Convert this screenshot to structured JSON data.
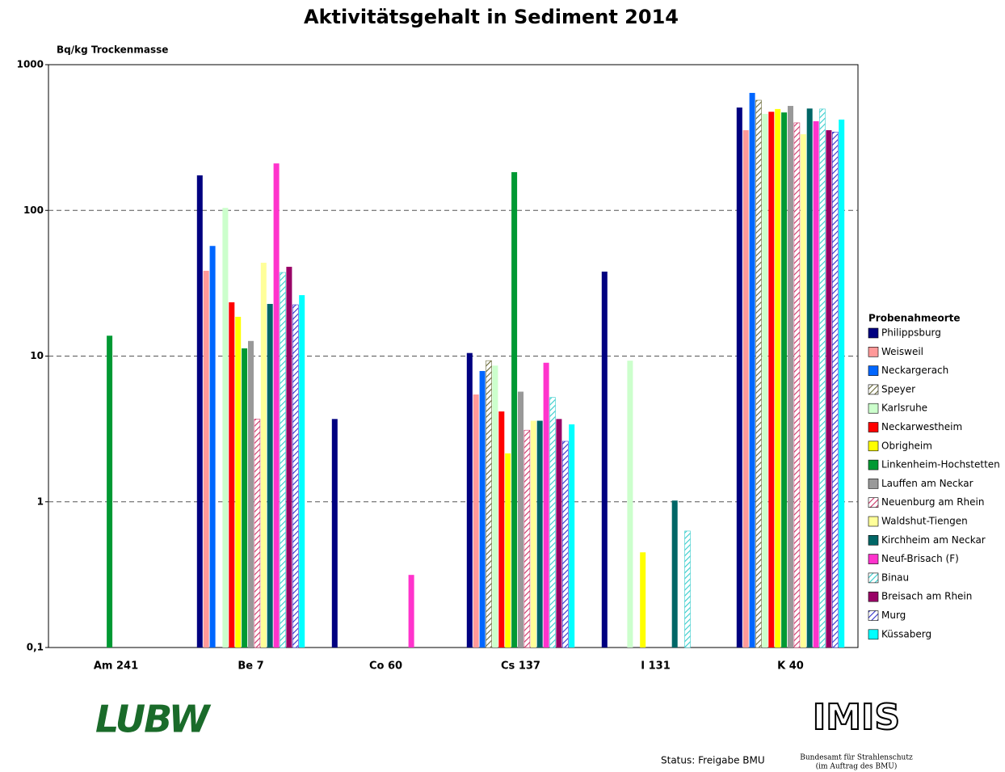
{
  "chart_data": {
    "type": "bar",
    "title": "Aktivitätsgehalt in Sediment 2014",
    "y_label": "Bq/kg Trockenmasse",
    "legend_title": "Probenahmeorte",
    "log_scale": true,
    "grid": true,
    "legend": "right",
    "categories": [
      "Am 241",
      "Be 7",
      "Co 60",
      "Cs 137",
      "I 131",
      "K 40"
    ],
    "ylim": [
      0.1,
      1000
    ],
    "yticks": [
      {
        "value": 0.1,
        "label": "0,1"
      },
      1,
      10,
      100,
      1000
    ],
    "series": [
      {
        "name": "Philippsburg",
        "color": "#000080",
        "hatch": false,
        "values": [
          null,
          174,
          3.7,
          10.5,
          38,
          508
        ]
      },
      {
        "name": "Weisweil",
        "color": "#ff9999",
        "hatch": false,
        "values": [
          null,
          38.5,
          null,
          5.45,
          null,
          355
        ]
      },
      {
        "name": "Neckargerach",
        "color": "#0066ff",
        "hatch": false,
        "values": [
          null,
          57,
          null,
          7.9,
          null,
          640
        ]
      },
      {
        "name": "Speyer",
        "color": "#666633",
        "hatch": true,
        "values": [
          null,
          null,
          null,
          9.3,
          null,
          570
        ]
      },
      {
        "name": "Karlsruhe",
        "color": "#ccffcc",
        "hatch": false,
        "values": [
          null,
          104,
          null,
          8.6,
          9.3,
          459
        ]
      },
      {
        "name": "Neckarwestheim",
        "color": "#ff0000",
        "hatch": false,
        "values": [
          null,
          23.4,
          null,
          4.17,
          null,
          475
        ]
      },
      {
        "name": "Obrigheim",
        "color": "#ffff00",
        "hatch": false,
        "values": [
          null,
          18.6,
          null,
          2.15,
          0.45,
          496
        ]
      },
      {
        "name": "Linkenheim-Hochstetten",
        "color": "#009933",
        "hatch": false,
        "values": [
          13.8,
          11.3,
          null,
          183,
          null,
          470
        ]
      },
      {
        "name": "Lauffen am Neckar",
        "color": "#999999",
        "hatch": false,
        "values": [
          null,
          12.7,
          null,
          5.7,
          null,
          521
        ]
      },
      {
        "name": "Neuenburg am Rhein",
        "color": "#cc3366",
        "hatch": true,
        "values": [
          null,
          3.7,
          null,
          3.1,
          null,
          399
        ]
      },
      {
        "name": "Waldshut-Tiengen",
        "color": "#ffff99",
        "hatch": false,
        "values": [
          null,
          43.7,
          null,
          3.6,
          null,
          333
        ]
      },
      {
        "name": "Kirchheim am Neckar",
        "color": "#006666",
        "hatch": false,
        "values": [
          null,
          22.8,
          null,
          3.6,
          1.02,
          500
        ]
      },
      {
        "name": "Neuf-Brisach (F)",
        "color": "#ff33cc",
        "hatch": false,
        "values": [
          null,
          210,
          0.315,
          9.0,
          null,
          409
        ]
      },
      {
        "name": "Binau",
        "color": "#33cccc",
        "hatch": true,
        "values": [
          null,
          37.5,
          null,
          5.2,
          0.63,
          496
        ]
      },
      {
        "name": "Breisach am Rhein",
        "color": "#990066",
        "hatch": false,
        "values": [
          null,
          41,
          null,
          3.7,
          null,
          355
        ]
      },
      {
        "name": "Murg",
        "color": "#3333cc",
        "hatch": true,
        "values": [
          null,
          22.5,
          null,
          2.6,
          null,
          345
        ]
      },
      {
        "name": "Küssaberg",
        "color": "#00ffff",
        "hatch": false,
        "values": [
          null,
          26.2,
          null,
          3.4,
          null,
          420
        ]
      }
    ]
  },
  "footer": {
    "status": "Status: Freigabe BMU",
    "logo_left": "LUBW",
    "logo_right": "IMIS",
    "agency": "Bundesamt für Strahlenschutz",
    "agency_note": "(im Auftrag des BMU)"
  }
}
